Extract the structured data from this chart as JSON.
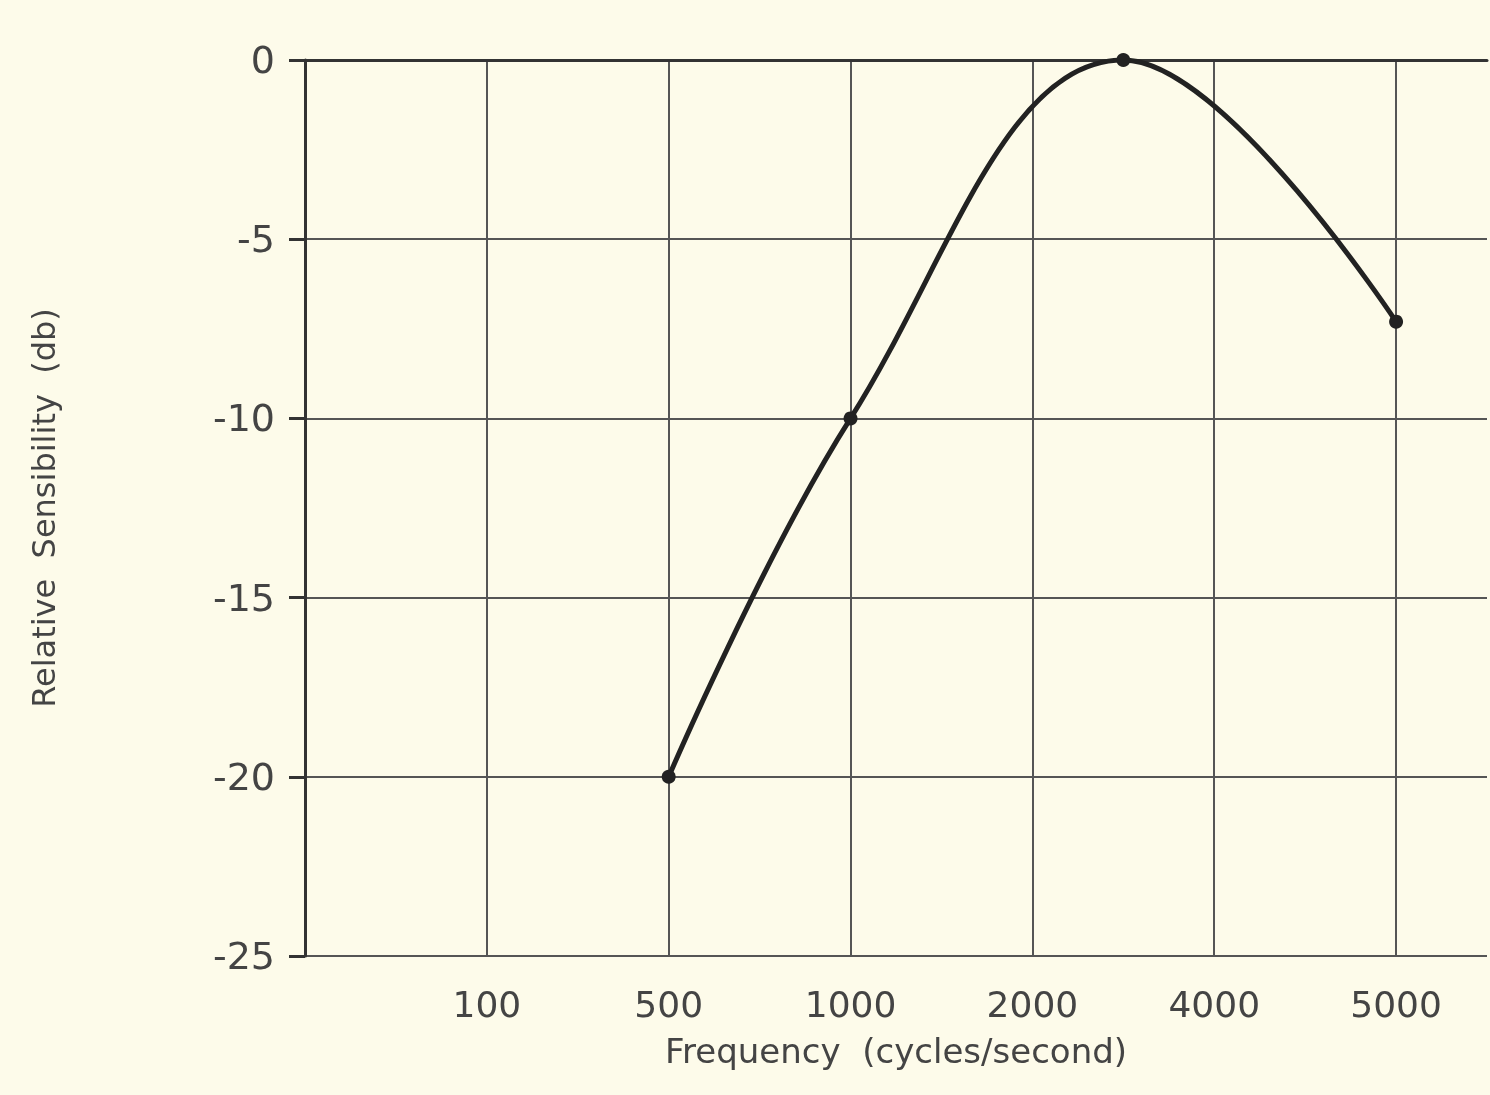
{
  "chart_data": {
    "type": "line",
    "xlabel": "Frequency  (cycles/second)",
    "ylabel": "Relative  Sensibility  (db)",
    "categories": [
      null,
      null,
      "100",
      null,
      "500",
      null,
      "1000",
      null,
      "2000",
      null,
      "4000",
      null,
      "5000",
      null
    ],
    "series": [
      {
        "color": "#222222",
        "values": [
          null,
          null,
          null,
          null,
          -20,
          null,
          -10,
          null,
          null,
          0,
          null,
          null,
          -7.3,
          null
        ]
      }
    ],
    "ylim": [
      -25,
      0
    ],
    "yticks": [
      -25,
      -20,
      -15,
      -10,
      -5,
      0
    ],
    "grid": true,
    "marker": "circle",
    "line_style": "solid"
  }
}
